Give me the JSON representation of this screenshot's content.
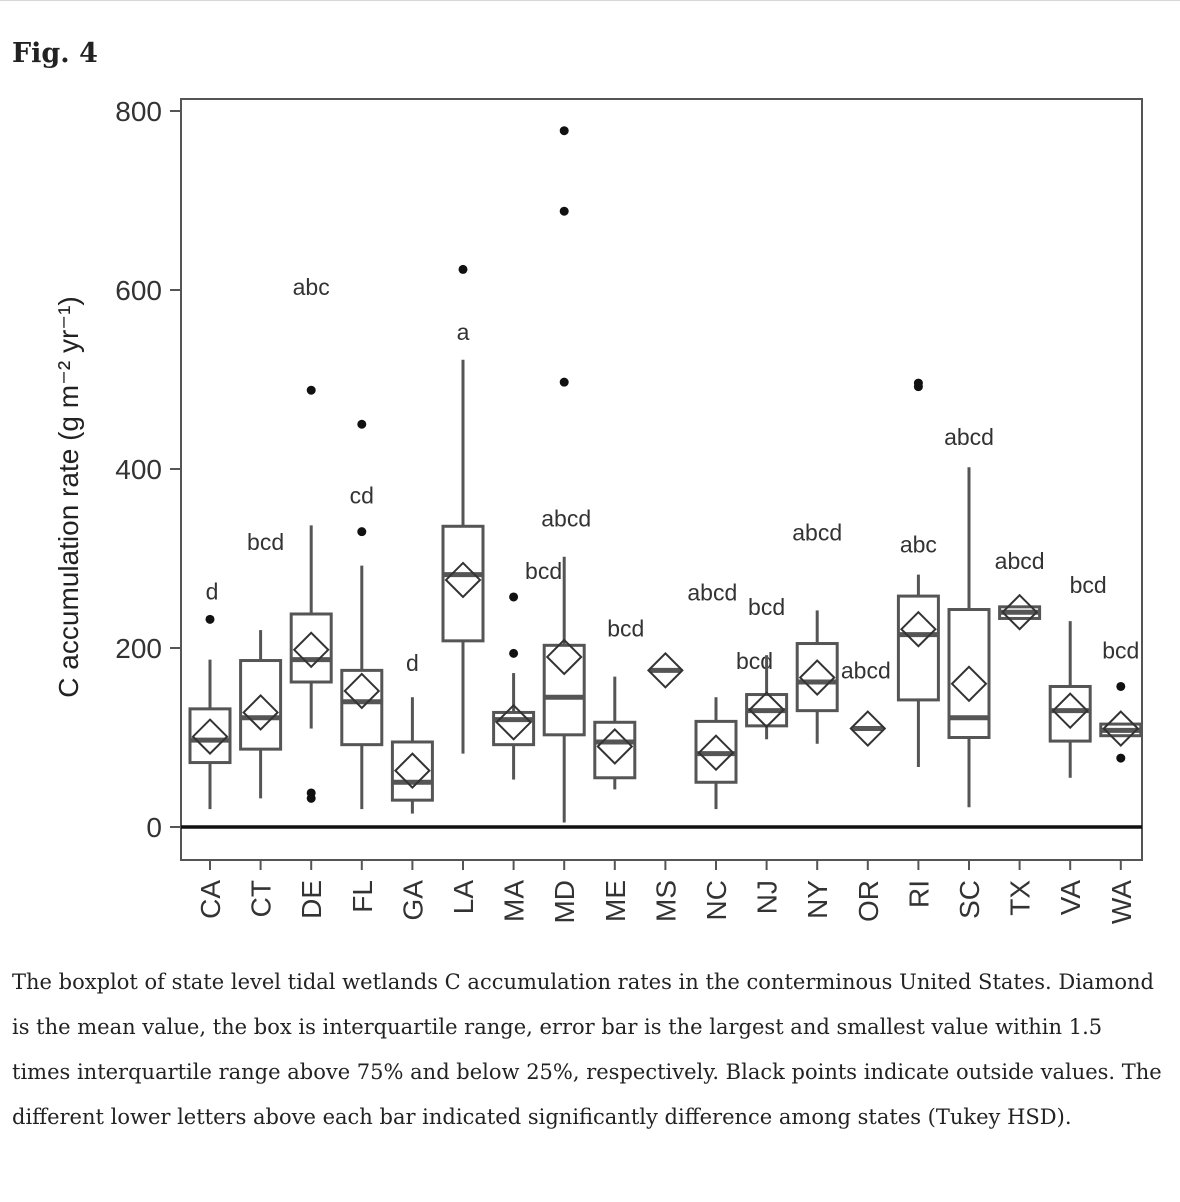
{
  "figure_label": "Fig. 4",
  "caption": "The boxplot of state level tidal wetlands C accumulation rates in the conterminous United States. Diamond is the mean value, the box is interquartile range, error bar is the largest and smallest value within 1.5 times interquartile range above 75% and below 25%, respectively. Black points indicate outside values. The different lower letters above each bar indicated significantly difference among states (Tukey HSD).",
  "chart_data": {
    "type": "boxplot",
    "ylabel": "C accumulation rate (g m⁻² yr⁻¹)",
    "xlabel": "",
    "ylim": [
      -38,
      815
    ],
    "yticks": [
      0,
      200,
      400,
      600,
      800
    ],
    "zero_line": true,
    "categories": [
      "CA",
      "CT",
      "DE",
      "FL",
      "GA",
      "LA",
      "MA",
      "MD",
      "ME",
      "MS",
      "NC",
      "NJ",
      "NY",
      "OR",
      "RI",
      "SC",
      "TX",
      "VA",
      "WA"
    ],
    "boxes": [
      {
        "state": "CA",
        "whisker_low": 20,
        "q1": 72,
        "median": 97,
        "q3": 132,
        "whisker_high": 187,
        "mean": 101,
        "outliers": [
          232
        ],
        "letters": "d"
      },
      {
        "state": "CT",
        "whisker_low": 32,
        "q1": 87,
        "median": 122,
        "q3": 186,
        "whisker_high": 220,
        "mean": 128,
        "outliers": [],
        "letters": "bcd"
      },
      {
        "state": "DE",
        "whisker_low": 110,
        "q1": 162,
        "median": 187,
        "q3": 238,
        "whisker_high": 337,
        "mean": 198,
        "outliers": [
          488,
          38,
          32
        ],
        "letters": "abc"
      },
      {
        "state": "FL",
        "whisker_low": 20,
        "q1": 92,
        "median": 140,
        "q3": 175,
        "whisker_high": 292,
        "mean": 152,
        "outliers": [
          450,
          330
        ],
        "letters": "cd"
      },
      {
        "state": "GA",
        "whisker_low": 15,
        "q1": 30,
        "median": 50,
        "q3": 95,
        "whisker_high": 145,
        "mean": 63,
        "outliers": [],
        "letters": "d"
      },
      {
        "state": "LA",
        "whisker_low": 82,
        "q1": 208,
        "median": 282,
        "q3": 336,
        "whisker_high": 522,
        "mean": 276,
        "outliers": [
          623
        ],
        "letters": "a"
      },
      {
        "state": "MA",
        "whisker_low": 53,
        "q1": 92,
        "median": 120,
        "q3": 128,
        "whisker_high": 172,
        "mean": 117,
        "outliers": [
          257,
          194
        ],
        "letters": "bcd"
      },
      {
        "state": "MD",
        "whisker_low": 5,
        "q1": 103,
        "median": 145,
        "q3": 203,
        "whisker_high": 302,
        "mean": 190,
        "outliers": [
          778,
          688,
          497
        ],
        "letters": "abcd"
      },
      {
        "state": "ME",
        "whisker_low": 42,
        "q1": 55,
        "median": 95,
        "q3": 117,
        "whisker_high": 168,
        "mean": 90,
        "outliers": [],
        "letters": "bcd"
      },
      {
        "state": "MS",
        "whisker_low": 175,
        "q1": 175,
        "median": 175,
        "q3": 175,
        "whisker_high": 175,
        "mean": 175,
        "outliers": [],
        "letters": "abcd"
      },
      {
        "state": "NC",
        "whisker_low": 20,
        "q1": 50,
        "median": 82,
        "q3": 118,
        "whisker_high": 145,
        "mean": 83,
        "outliers": [],
        "letters": "bcd"
      },
      {
        "state": "NJ",
        "whisker_low": 98,
        "q1": 113,
        "median": 130,
        "q3": 148,
        "whisker_high": 192,
        "mean": 131,
        "outliers": [],
        "letters": "bcd"
      },
      {
        "state": "NY",
        "whisker_low": 93,
        "q1": 130,
        "median": 162,
        "q3": 205,
        "whisker_high": 242,
        "mean": 167,
        "outliers": [],
        "letters": "abcd"
      },
      {
        "state": "OR",
        "whisker_low": 110,
        "q1": 110,
        "median": 110,
        "q3": 110,
        "whisker_high": 110,
        "mean": 110,
        "outliers": [],
        "letters": "abcd"
      },
      {
        "state": "RI",
        "whisker_low": 67,
        "q1": 142,
        "median": 215,
        "q3": 258,
        "whisker_high": 282,
        "mean": 221,
        "outliers": [
          496,
          492
        ],
        "letters": "abc"
      },
      {
        "state": "SC",
        "whisker_low": 22,
        "q1": 100,
        "median": 122,
        "q3": 243,
        "whisker_high": 402,
        "mean": 160,
        "outliers": [],
        "letters": "abcd"
      },
      {
        "state": "TX",
        "whisker_low": 233,
        "q1": 233,
        "median": 240,
        "q3": 246,
        "whisker_high": 246,
        "mean": 240,
        "outliers": [],
        "letters": "abcd"
      },
      {
        "state": "VA",
        "whisker_low": 55,
        "q1": 96,
        "median": 130,
        "q3": 157,
        "whisker_high": 230,
        "mean": 130,
        "outliers": [],
        "letters": "bcd"
      },
      {
        "state": "WA",
        "whisker_low": 102,
        "q1": 102,
        "median": 108,
        "q3": 115,
        "whisker_high": 115,
        "mean": 110,
        "outliers": [
          157,
          77
        ],
        "letters": "bcd"
      }
    ]
  }
}
